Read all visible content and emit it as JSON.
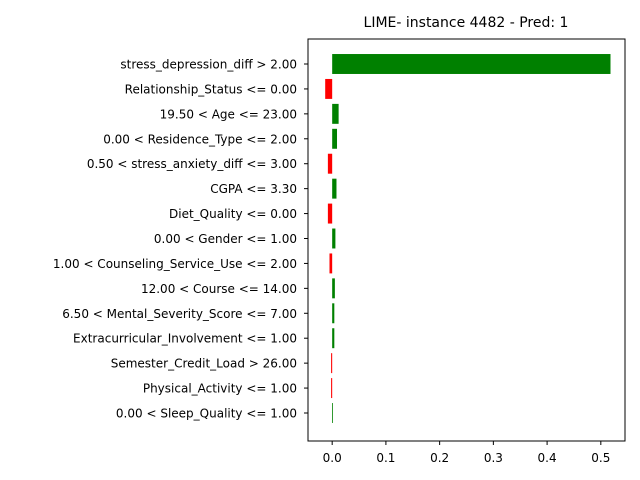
{
  "chart_data": {
    "type": "bar",
    "orientation": "horizontal",
    "title": "LIME- instance 4482 - Pred: 1",
    "xlabel": "",
    "ylabel": "",
    "xlim": [
      -0.045,
      0.545
    ],
    "xticks": [
      0.0,
      0.1,
      0.2,
      0.3,
      0.4,
      0.5
    ],
    "xtick_labels": [
      "0.0",
      "0.1",
      "0.2",
      "0.3",
      "0.4",
      "0.5"
    ],
    "grid": false,
    "legend": "none",
    "colors": {
      "positive": "#008000",
      "negative": "#ff0000"
    },
    "categories": [
      "stress_depression_diff > 2.00",
      "Relationship_Status <= 0.00",
      "19.50 < Age <= 23.00",
      "0.00 < Residence_Type <= 2.00",
      "0.50 < stress_anxiety_diff <= 3.00",
      "CGPA <= 3.30",
      "Diet_Quality <= 0.00",
      "0.00 < Gender <= 1.00",
      "1.00 < Counseling_Service_Use <= 2.00",
      "12.00 < Course <= 14.00",
      "6.50 < Mental_Severity_Score <= 7.00",
      "Extracurricular_Involvement <= 1.00",
      "Semester_Credit_Load > 26.00",
      "Physical_Activity <= 1.00",
      "0.00 < Sleep_Quality <= 1.00"
    ],
    "values": [
      0.518,
      -0.013,
      0.012,
      0.009,
      -0.008,
      0.008,
      -0.008,
      0.006,
      -0.005,
      0.005,
      0.004,
      0.004,
      -0.002,
      -0.002,
      0.001
    ]
  }
}
